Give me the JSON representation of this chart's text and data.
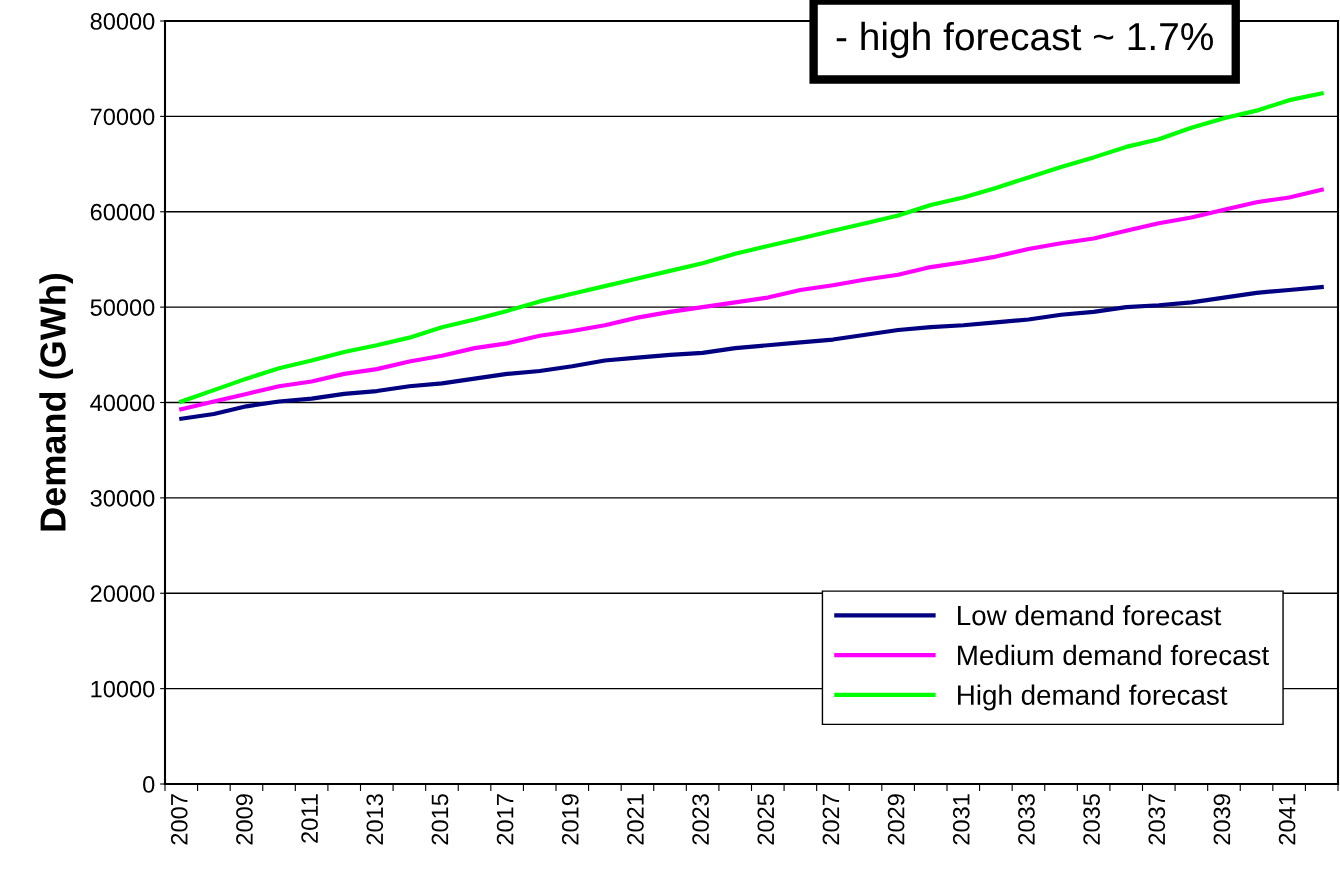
{
  "chart_data": {
    "type": "line",
    "ylabel": "Demand (GWh)",
    "categories": [
      "2007",
      null,
      "2009",
      null,
      "2011",
      null,
      "2013",
      null,
      "2015",
      null,
      "2017",
      null,
      "2019",
      null,
      "2021",
      null,
      "2023",
      null,
      "2025",
      null,
      "2027",
      null,
      "2029",
      null,
      "2031",
      null,
      "2033",
      null,
      "2035",
      null,
      "2037",
      null,
      "2039",
      null,
      "2041",
      null
    ],
    "series": [
      {
        "name": "Low demand forecast",
        "color": "#000080",
        "values": [
          38300,
          38800,
          39600,
          40100,
          40400,
          40900,
          41200,
          41700,
          42000,
          42500,
          43000,
          43300,
          43800,
          44400,
          44700,
          45000,
          45200,
          45700,
          46000,
          46300,
          46600,
          47100,
          47600,
          47900,
          48100,
          48400,
          48700,
          49200,
          49500,
          50000,
          50200,
          50500,
          51000,
          51500,
          51800,
          52100
        ]
      },
      {
        "name": "Medium demand forecast",
        "color": "#ff00ff",
        "values": [
          39300,
          40100,
          40900,
          41700,
          42200,
          43000,
          43500,
          44300,
          44900,
          45700,
          46200,
          47000,
          47500,
          48100,
          48900,
          49500,
          50000,
          50500,
          51000,
          51800,
          52300,
          52900,
          53400,
          54200,
          54700,
          55300,
          56100,
          56700,
          57200,
          58000,
          58800,
          59400,
          60200,
          61000,
          61500,
          62300
        ]
      },
      {
        "name": "High demand forecast",
        "color": "#00ff00",
        "values": [
          40100,
          41300,
          42500,
          43600,
          44400,
          45300,
          46000,
          46800,
          47900,
          48700,
          49600,
          50600,
          51400,
          52200,
          53000,
          53800,
          54600,
          55600,
          56400,
          57200,
          58000,
          58800,
          59600,
          60700,
          61500,
          62500,
          63600,
          64700,
          65700,
          66800,
          67600,
          68800,
          69800,
          70600,
          71700,
          72400
        ]
      }
    ],
    "ylim": [
      0,
      80000
    ],
    "yticks": [
      0,
      10000,
      20000,
      30000,
      40000,
      50000,
      60000,
      70000,
      80000
    ],
    "grid": "y",
    "legend": "bottom right",
    "marker": "none",
    "line_style": "solid",
    "annotations": [
      "- high forecast ~ 1.7%"
    ]
  }
}
